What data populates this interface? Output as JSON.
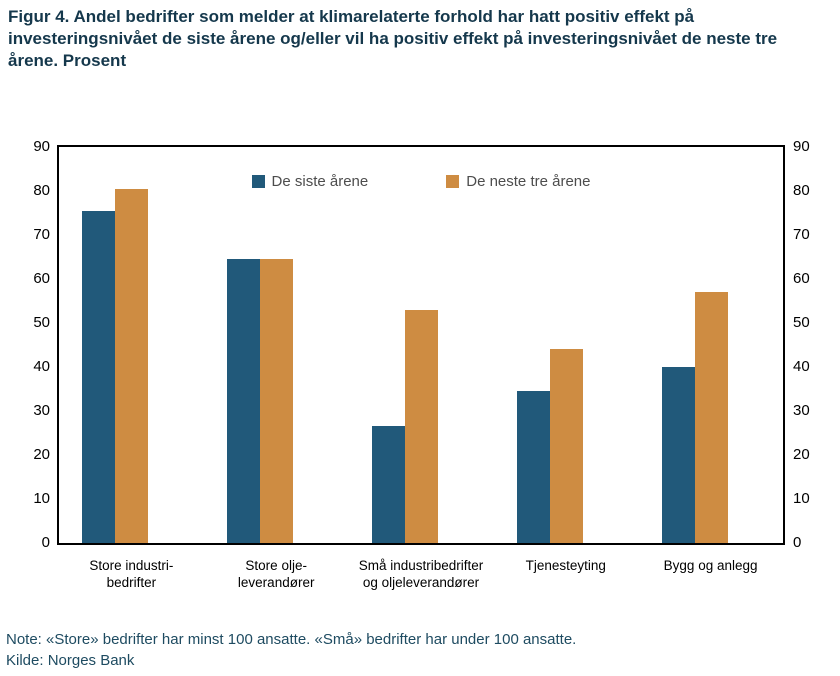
{
  "title": "Figur 4. Andel bedrifter som melder at klimarelaterte forhold har hatt positiv effekt på investeringsnivået de siste årene og/eller vil ha positiv effekt på investeringsnivået de neste tre årene. Prosent",
  "note": "Note: «Store» bedrifter har minst 100 ansatte. «Små» bedrifter har under 100 ansatte.",
  "source": "Kilde: Norges Bank",
  "colors": {
    "title_text": "#15384C",
    "note_text": "#1E4B61",
    "legend_text": "#4D4D4D",
    "axis_frame": "#000000",
    "tick_text": "#000000",
    "series_last_years": "#21597A",
    "series_next_three_years": "#CE8C42"
  },
  "chart_data": {
    "type": "bar",
    "categories": [
      "Store industri-\nbedrifter",
      "Store olje-\nleverandører",
      "Små industribedrifter\nog oljeleverandører",
      "Tjenesteyting",
      "Bygg og anlegg"
    ],
    "series": [
      {
        "name": "De siste årene",
        "color": "#21597A",
        "values": [
          75.5,
          64.5,
          26.5,
          34.5,
          40
        ]
      },
      {
        "name": "De neste tre årene",
        "color": "#CE8C42",
        "values": [
          80.5,
          64.5,
          53,
          44,
          57
        ]
      }
    ],
    "ylim": [
      0,
      90
    ],
    "yticks": [
      0,
      10,
      20,
      30,
      40,
      50,
      60,
      70,
      80,
      90
    ],
    "ylabel": "",
    "xlabel": "",
    "grid": false,
    "legend_position": "top-center-inside",
    "y_axis_labels_both_sides": true
  }
}
